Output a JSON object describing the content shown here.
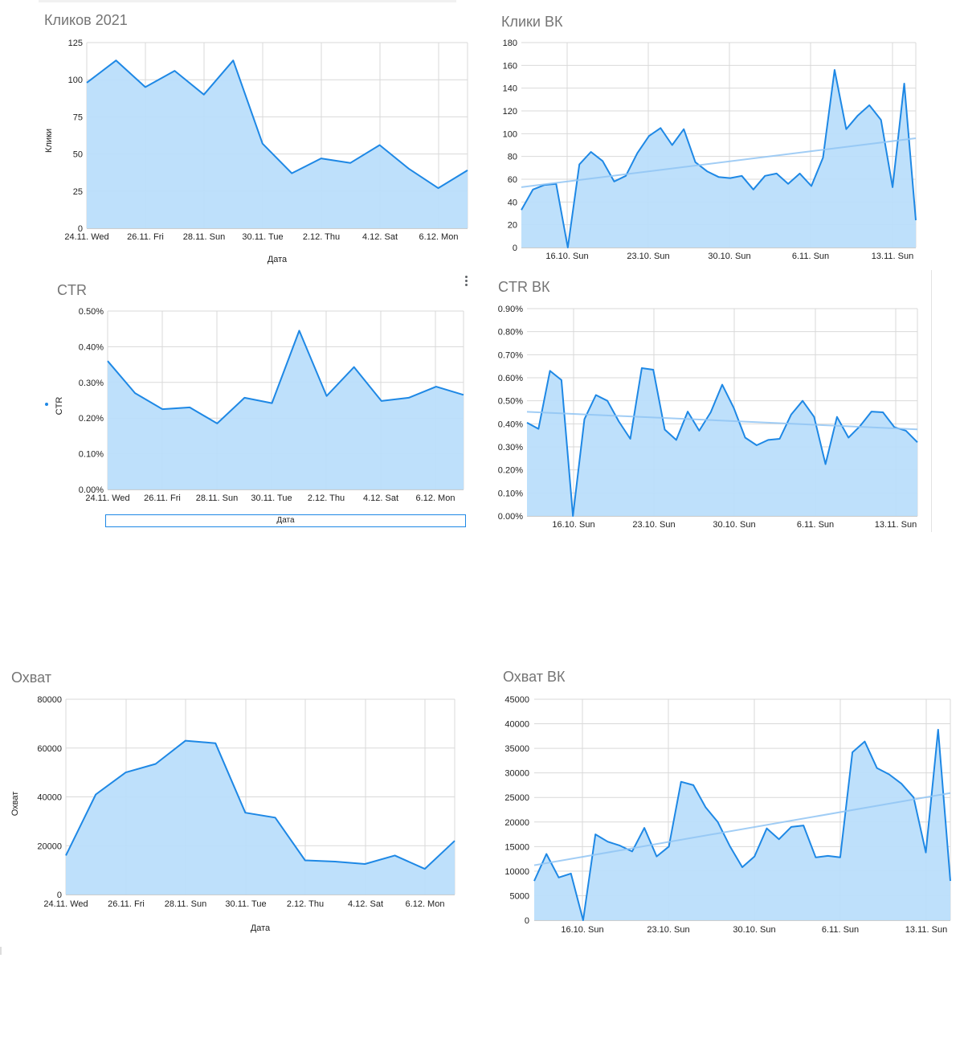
{
  "colors": {
    "line": "#1e88e5",
    "fill": "#bbdefb",
    "trend": "#90c4f3",
    "grid": "#d9d9d9",
    "text": "#222222",
    "title": "#757575"
  },
  "range_control": {
    "label": "Дата"
  },
  "chart_data": [
    {
      "type": "area",
      "title": "Кликов 2021",
      "xlabel": "Дата",
      "ylabel": "Клики",
      "ylim": [
        0,
        125
      ],
      "y_ticks": [
        "0",
        "25",
        "50",
        "75",
        "100",
        "125"
      ],
      "x_tick_labels": [
        "24.11. Wed",
        "26.11. Fri",
        "28.11. Sun",
        "30.11. Tue",
        "2.12. Thu",
        "4.12. Sat",
        "6.12. Mon"
      ],
      "x": [
        "24.11",
        "25.11",
        "26.11",
        "27.11",
        "28.11",
        "29.11",
        "30.11",
        "1.12",
        "2.12",
        "3.12",
        "4.12",
        "5.12",
        "6.12",
        "7.12"
      ],
      "values": [
        98,
        113,
        95,
        106,
        90,
        113,
        57,
        37,
        47,
        44,
        56,
        40,
        27,
        39
      ],
      "grid": true,
      "trendline": false
    },
    {
      "type": "area",
      "title": "Клики ВК",
      "xlabel": "",
      "ylabel": "",
      "ylim": [
        0,
        180
      ],
      "y_ticks": [
        "0",
        "20",
        "40",
        "60",
        "80",
        "100",
        "120",
        "140",
        "160",
        "180"
      ],
      "x_tick_labels": [
        "16.10. Sun",
        "23.10. Sun",
        "30.10. Sun",
        "6.11. Sun",
        "13.11. Sun"
      ],
      "x_range": [
        "12.10",
        "14.11"
      ],
      "values": [
        33,
        51,
        55,
        56,
        0,
        73,
        84,
        76,
        58,
        63,
        83,
        98,
        105,
        90,
        104,
        75,
        67,
        62,
        61,
        63,
        51,
        63,
        65,
        56,
        65,
        54,
        79,
        156,
        104,
        116,
        125,
        112,
        53,
        144,
        24
      ],
      "grid": true,
      "trendline": true,
      "trend_ends": [
        53,
        96
      ]
    },
    {
      "type": "area",
      "title": "CTR",
      "xlabel": "Дата",
      "ylabel": "CTR",
      "ylim": [
        0,
        0.5
      ],
      "y_ticks": [
        "0.00%",
        "0.10%",
        "0.20%",
        "0.30%",
        "0.40%",
        "0.50%"
      ],
      "x_tick_labels": [
        "24.11. Wed",
        "26.11. Fri",
        "28.11. Sun",
        "30.11. Tue",
        "2.12. Thu",
        "4.12. Sat",
        "6.12. Mon"
      ],
      "x": [
        "24.11",
        "25.11",
        "26.11",
        "27.11",
        "28.11",
        "29.11",
        "30.11",
        "1.12",
        "2.12",
        "3.12",
        "4.12",
        "5.12",
        "6.12",
        "7.12"
      ],
      "values": [
        0.36,
        0.27,
        0.225,
        0.23,
        0.185,
        0.257,
        0.242,
        0.445,
        0.262,
        0.343,
        0.248,
        0.257,
        0.288,
        0.265
      ],
      "grid": true,
      "trendline": false
    },
    {
      "type": "area",
      "title": "CTR ВК",
      "xlabel": "",
      "ylabel": "",
      "ylim": [
        0,
        0.9
      ],
      "y_ticks": [
        "0.00%",
        "0.10%",
        "0.20%",
        "0.30%",
        "0.40%",
        "0.50%",
        "0.60%",
        "0.70%",
        "0.80%",
        "0.90%"
      ],
      "x_tick_labels": [
        "16.10. Sun",
        "23.10. Sun",
        "30.10. Sun",
        "6.11. Sun",
        "13.11. Sun"
      ],
      "x_range": [
        "11.10",
        "14.11"
      ],
      "values": [
        0.405,
        0.378,
        0.63,
        0.59,
        0,
        0.42,
        0.525,
        0.5,
        0.41,
        0.335,
        0.642,
        0.635,
        0.375,
        0.33,
        0.453,
        0.37,
        0.45,
        0.57,
        0.47,
        0.34,
        0.307,
        0.33,
        0.335,
        0.44,
        0.5,
        0.43,
        0.225,
        0.43,
        0.34,
        0.39,
        0.453,
        0.45,
        0.385,
        0.37,
        0.32
      ],
      "grid": true,
      "trendline": true,
      "trend_ends": [
        0.452,
        0.376
      ]
    },
    {
      "type": "area",
      "title": "Охват",
      "xlabel": "Дата",
      "ylabel": "Охват",
      "ylim": [
        0,
        80000
      ],
      "y_ticks": [
        "0",
        "20000",
        "40000",
        "60000",
        "80000"
      ],
      "x_tick_labels": [
        "24.11. Wed",
        "26.11. Fri",
        "28.11. Sun",
        "30.11. Tue",
        "2.12. Thu",
        "4.12. Sat",
        "6.12. Mon"
      ],
      "x": [
        "24.11",
        "25.11",
        "26.11",
        "27.11",
        "28.11",
        "29.11",
        "30.11",
        "1.12",
        "2.12",
        "3.12",
        "4.12",
        "5.12",
        "6.12",
        "7.12"
      ],
      "values": [
        16000,
        41000,
        50000,
        53500,
        63000,
        62000,
        33500,
        31500,
        14000,
        13500,
        12500,
        16000,
        10500,
        22000
      ],
      "grid": true,
      "trendline": false
    },
    {
      "type": "area",
      "title": "Охват ВК",
      "xlabel": "",
      "ylabel": "",
      "ylim": [
        0,
        45000
      ],
      "y_ticks": [
        "0",
        "5000",
        "10000",
        "15000",
        "20000",
        "25000",
        "30000",
        "35000",
        "40000",
        "45000"
      ],
      "x_tick_labels": [
        "16.10. Sun",
        "23.10. Sun",
        "30.10. Sun",
        "6.11. Sun",
        "13.11. Sun"
      ],
      "x_range": [
        "12.10",
        "14.11"
      ],
      "values": [
        8000,
        13500,
        8700,
        9500,
        0,
        17500,
        16000,
        15200,
        14000,
        18800,
        13000,
        15000,
        28200,
        27500,
        23000,
        20000,
        15000,
        10800,
        13000,
        18700,
        16500,
        19000,
        19300,
        12800,
        13100,
        12800,
        34200,
        36400,
        31000,
        29700,
        27800,
        25000,
        13800,
        38800,
        8000
      ],
      "grid": true,
      "trendline": true,
      "trend_ends": [
        11200,
        25900
      ]
    }
  ]
}
